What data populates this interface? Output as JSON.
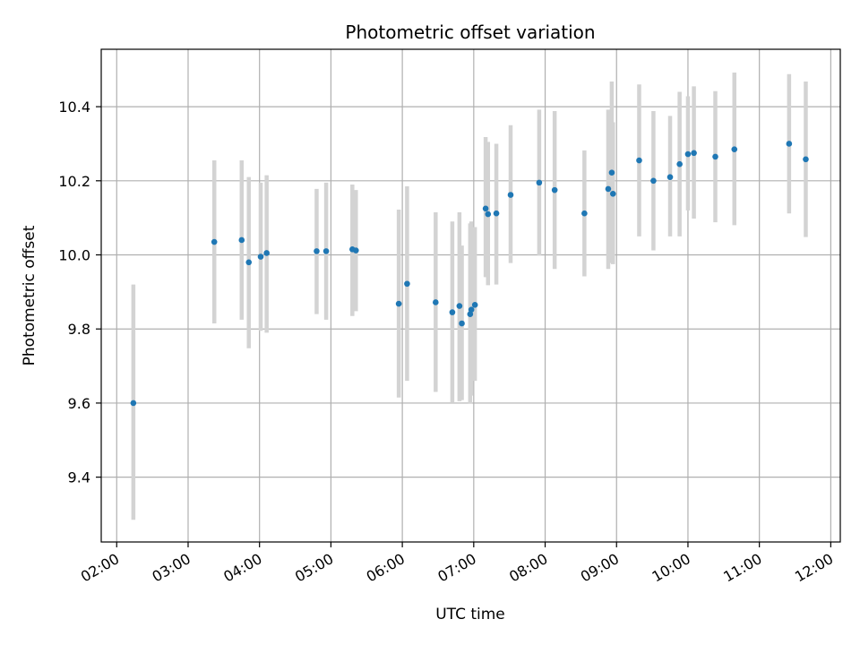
{
  "chart_data": {
    "type": "scatter",
    "title": "Photometric offset variation",
    "xlabel": "UTC time",
    "ylabel": "Photometric offset",
    "x_unit": "hours UTC",
    "xlim": [
      "01:47",
      "12:08"
    ],
    "ylim": [
      9.225,
      10.555
    ],
    "grid": true,
    "x_ticks": [
      "02:00",
      "03:00",
      "04:00",
      "05:00",
      "06:00",
      "07:00",
      "08:00",
      "09:00",
      "10:00",
      "11:00",
      "12:00"
    ],
    "y_ticks": [
      "9.4",
      "9.6",
      "9.8",
      "10.0",
      "10.2",
      "10.4"
    ],
    "point_color": "#1f77b4",
    "errorbar_color": "#d3d3d3",
    "points": [
      {
        "t": "02:14",
        "y": 9.6,
        "lo": 9.285,
        "hi": 9.92
      },
      {
        "t": "03:22",
        "y": 10.035,
        "lo": 9.815,
        "hi": 10.255
      },
      {
        "t": "03:45",
        "y": 10.04,
        "lo": 9.825,
        "hi": 10.255
      },
      {
        "t": "03:51",
        "y": 9.98,
        "lo": 9.748,
        "hi": 10.21
      },
      {
        "t": "04:01",
        "y": 9.995,
        "lo": 9.795,
        "hi": 10.195
      },
      {
        "t": "04:06",
        "y": 10.005,
        "lo": 9.79,
        "hi": 10.215
      },
      {
        "t": "04:48",
        "y": 10.01,
        "lo": 9.84,
        "hi": 10.178
      },
      {
        "t": "04:56",
        "y": 10.01,
        "lo": 9.825,
        "hi": 10.195
      },
      {
        "t": "05:18",
        "y": 10.015,
        "lo": 9.835,
        "hi": 10.19
      },
      {
        "t": "05:21",
        "y": 10.012,
        "lo": 9.848,
        "hi": 10.175
      },
      {
        "t": "05:57",
        "y": 9.868,
        "lo": 9.615,
        "hi": 10.122
      },
      {
        "t": "06:04",
        "y": 9.922,
        "lo": 9.66,
        "hi": 10.185
      },
      {
        "t": "06:28",
        "y": 9.872,
        "lo": 9.63,
        "hi": 10.115
      },
      {
        "t": "06:42",
        "y": 9.845,
        "lo": 9.6,
        "hi": 10.09
      },
      {
        "t": "06:48",
        "y": 9.862,
        "lo": 9.605,
        "hi": 10.115
      },
      {
        "t": "06:50",
        "y": 9.815,
        "lo": 9.608,
        "hi": 10.025
      },
      {
        "t": "06:57",
        "y": 9.84,
        "lo": 9.598,
        "hi": 10.085
      },
      {
        "t": "06:58",
        "y": 9.852,
        "lo": 9.62,
        "hi": 10.09
      },
      {
        "t": "07:01",
        "y": 9.865,
        "lo": 9.66,
        "hi": 10.075
      },
      {
        "t": "07:10",
        "y": 10.125,
        "lo": 9.94,
        "hi": 10.318
      },
      {
        "t": "07:12",
        "y": 10.11,
        "lo": 9.918,
        "hi": 10.305
      },
      {
        "t": "07:19",
        "y": 10.112,
        "lo": 9.92,
        "hi": 10.3
      },
      {
        "t": "07:31",
        "y": 10.162,
        "lo": 9.978,
        "hi": 10.35
      },
      {
        "t": "07:55",
        "y": 10.195,
        "lo": 9.998,
        "hi": 10.392
      },
      {
        "t": "08:08",
        "y": 10.175,
        "lo": 9.962,
        "hi": 10.388
      },
      {
        "t": "08:33",
        "y": 10.112,
        "lo": 9.942,
        "hi": 10.282
      },
      {
        "t": "08:53",
        "y": 10.178,
        "lo": 9.962,
        "hi": 10.392
      },
      {
        "t": "08:56",
        "y": 10.222,
        "lo": 9.978,
        "hi": 10.468
      },
      {
        "t": "08:57",
        "y": 10.165,
        "lo": 9.975,
        "hi": 10.358
      },
      {
        "t": "09:19",
        "y": 10.255,
        "lo": 10.05,
        "hi": 10.46
      },
      {
        "t": "09:31",
        "y": 10.2,
        "lo": 10.012,
        "hi": 10.388
      },
      {
        "t": "09:45",
        "y": 10.21,
        "lo": 10.05,
        "hi": 10.375
      },
      {
        "t": "09:53",
        "y": 10.245,
        "lo": 10.05,
        "hi": 10.44
      },
      {
        "t": "10:00",
        "y": 10.272,
        "lo": 10.12,
        "hi": 10.428
      },
      {
        "t": "10:05",
        "y": 10.275,
        "lo": 10.098,
        "hi": 10.455
      },
      {
        "t": "10:23",
        "y": 10.265,
        "lo": 10.088,
        "hi": 10.442
      },
      {
        "t": "10:39",
        "y": 10.285,
        "lo": 10.08,
        "hi": 10.492
      },
      {
        "t": "11:25",
        "y": 10.3,
        "lo": 10.112,
        "hi": 10.488
      },
      {
        "t": "11:39",
        "y": 10.258,
        "lo": 10.048,
        "hi": 10.468
      }
    ]
  }
}
